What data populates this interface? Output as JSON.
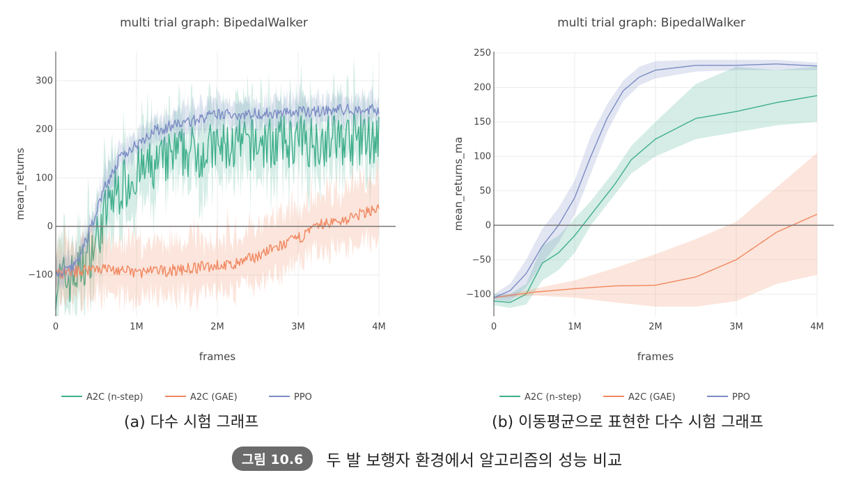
{
  "chart_data": [
    {
      "type": "line",
      "title": "multi trial graph: BipedalWalker",
      "xlabel": "frames",
      "ylabel": "mean_returns",
      "xlim": [
        0,
        4000000
      ],
      "ylim": [
        -185,
        360
      ],
      "x_ticks": [
        0,
        1000000,
        2000000,
        3000000,
        4000000
      ],
      "x_tick_labels": [
        "0",
        "1M",
        "2M",
        "3M",
        "4M"
      ],
      "y_ticks": [
        -100,
        0,
        100,
        200,
        300
      ],
      "y_tick_labels": [
        "−100",
        "0",
        "100",
        "200",
        "300"
      ],
      "zero_line": true,
      "grid": true,
      "legend_position": "bottom-left",
      "series": [
        {
          "name": "A2C (n-step)",
          "color": "#3fae8b",
          "noise": 55,
          "band": 65,
          "x": [
            0,
            200000,
            300000,
            400000,
            500000,
            600000,
            700000,
            800000,
            1000000,
            1200000,
            1500000,
            2000000,
            2500000,
            3000000,
            3500000,
            4000000
          ],
          "y": [
            -115,
            -105,
            -90,
            -60,
            -30,
            20,
            60,
            80,
            110,
            120,
            150,
            160,
            170,
            175,
            180,
            180
          ]
        },
        {
          "name": "A2C (GAE)",
          "color": "#f0875f",
          "noise": 12,
          "band": 55,
          "x": [
            0,
            500000,
            1000000,
            1500000,
            2000000,
            2200000,
            2500000,
            3000000,
            3300000,
            3500000,
            3700000,
            4000000
          ],
          "y": [
            -100,
            -85,
            -95,
            -90,
            -80,
            -80,
            -60,
            -25,
            5,
            10,
            20,
            40
          ]
        },
        {
          "name": "PPO",
          "color": "#7b8bc4",
          "noise": 12,
          "band": 25,
          "x": [
            0,
            200000,
            300000,
            400000,
            500000,
            600000,
            800000,
            1000000,
            1200000,
            1500000,
            2000000,
            2500000,
            3000000,
            3500000,
            4000000
          ],
          "y": [
            -105,
            -85,
            -60,
            -20,
            30,
            80,
            140,
            170,
            195,
            210,
            230,
            232,
            235,
            240,
            240
          ]
        }
      ]
    },
    {
      "type": "line",
      "title": "multi trial graph: BipedalWalker",
      "xlabel": "frames",
      "ylabel": "mean_returns_ma",
      "xlim": [
        0,
        4000000
      ],
      "ylim": [
        -132,
        252
      ],
      "x_ticks": [
        0,
        1000000,
        2000000,
        3000000,
        4000000
      ],
      "x_tick_labels": [
        "0",
        "1M",
        "2M",
        "3M",
        "4M"
      ],
      "y_ticks": [
        -100,
        -50,
        0,
        50,
        100,
        150,
        200,
        250
      ],
      "y_tick_labels": [
        "−100",
        "−50",
        "0",
        "50",
        "100",
        "150",
        "200",
        "250"
      ],
      "zero_line": true,
      "grid": true,
      "legend_position": "bottom-left",
      "series": [
        {
          "name": "A2C (n-step)",
          "color": "#3fae8b",
          "x": [
            0,
            200000,
            400000,
            600000,
            800000,
            1000000,
            1200000,
            1500000,
            1700000,
            2000000,
            2500000,
            3000000,
            3500000,
            4000000
          ],
          "y": [
            -110,
            -112,
            -100,
            -55,
            -40,
            -15,
            15,
            60,
            95,
            125,
            155,
            165,
            178,
            188
          ],
          "band_lower": [
            -116,
            -120,
            -115,
            -80,
            -65,
            -40,
            0,
            45,
            75,
            100,
            125,
            135,
            145,
            150
          ],
          "band_upper": [
            -100,
            -100,
            -85,
            -30,
            -15,
            10,
            35,
            80,
            115,
            150,
            205,
            230,
            225,
            230
          ]
        },
        {
          "name": "A2C (GAE)",
          "color": "#f0875f",
          "x": [
            0,
            500000,
            1000000,
            1500000,
            2000000,
            2500000,
            3000000,
            3500000,
            4000000
          ],
          "y": [
            -105,
            -97,
            -92,
            -88,
            -87,
            -75,
            -50,
            -10,
            16
          ],
          "band_lower": [
            -106,
            -102,
            -105,
            -112,
            -118,
            -118,
            -110,
            -85,
            -72
          ],
          "band_upper": [
            -104,
            -92,
            -80,
            -62,
            -42,
            -20,
            5,
            55,
            105
          ]
        },
        {
          "name": "PPO",
          "color": "#7b8bc4",
          "x": [
            0,
            200000,
            400000,
            600000,
            800000,
            1000000,
            1200000,
            1400000,
            1600000,
            1800000,
            2000000,
            2500000,
            3000000,
            3500000,
            4000000
          ],
          "y": [
            -105,
            -95,
            -70,
            -30,
            0,
            40,
            100,
            155,
            195,
            215,
            225,
            232,
            232,
            234,
            231
          ],
          "band_lower": [
            -108,
            -110,
            -90,
            -55,
            -25,
            15,
            75,
            135,
            180,
            203,
            213,
            223,
            225,
            225,
            225
          ],
          "band_upper": [
            -100,
            -85,
            -50,
            -5,
            25,
            65,
            130,
            175,
            210,
            230,
            238,
            240,
            240,
            240,
            236
          ]
        }
      ]
    }
  ],
  "captions": {
    "a": "(a) 다수 시험 그래프",
    "b": "(b) 이동평균으로 표현한 다수 시험 그래프",
    "figure_label": "그림 10.6",
    "figure_text": "두 발 보행자 환경에서 알고리즘의 성능 비교"
  }
}
